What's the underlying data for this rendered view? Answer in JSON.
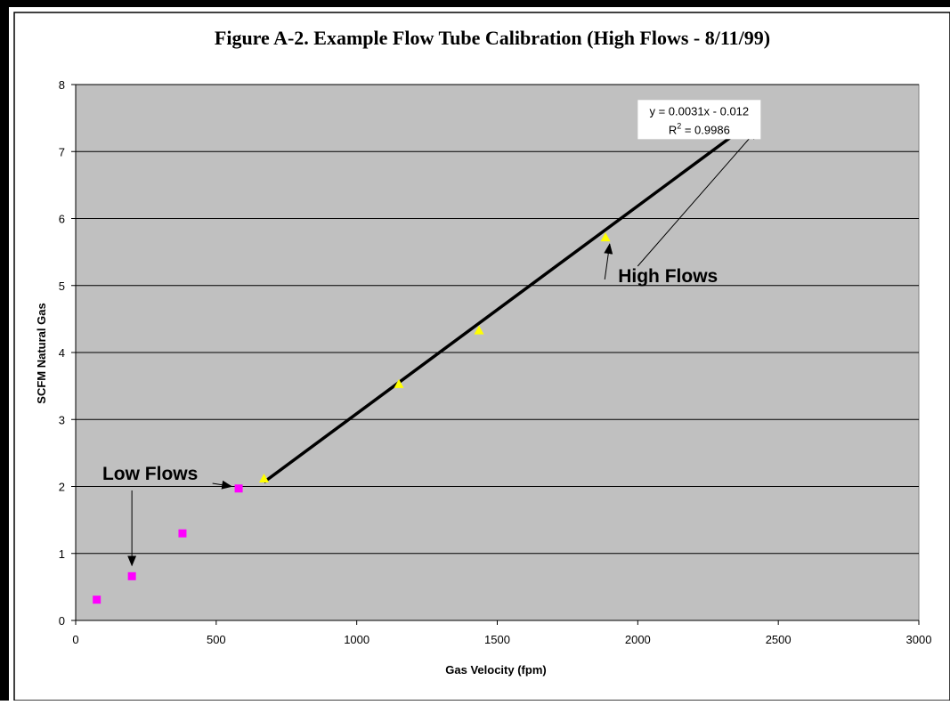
{
  "chart_data": {
    "type": "scatter",
    "title": "Figure A-2.  Example Flow Tube Calibration (High Flows - 8/11/99)",
    "xlabel": "Gas Velocity (fpm)",
    "ylabel": "SCFM Natural Gas",
    "xlim": [
      0,
      3000
    ],
    "ylim": [
      0,
      8
    ],
    "x_ticks": [
      0,
      500,
      1000,
      1500,
      2000,
      2500,
      3000
    ],
    "y_ticks": [
      0,
      1,
      2,
      3,
      4,
      5,
      6,
      7,
      8
    ],
    "grid": "horizontal",
    "plot_background": "#c0c0c0",
    "series": [
      {
        "marker": "square",
        "color": "#ff00ff",
        "points": [
          [
            75,
            0.31
          ],
          [
            200,
            0.66
          ],
          [
            380,
            1.3
          ],
          [
            580,
            1.97
          ]
        ]
      },
      {
        "marker": "triangle",
        "color": "#ffff00",
        "points": [
          [
            670,
            2.12
          ],
          [
            1150,
            3.53
          ],
          [
            1435,
            4.33
          ],
          [
            1885,
            5.72
          ],
          [
            2420,
            7.58
          ]
        ]
      }
    ],
    "trendline": {
      "slope": 0.0031,
      "intercept": -0.012,
      "x_range": [
        670,
        2420
      ],
      "color": "#000000",
      "equation": "y = 0.0031x - 0.012",
      "r2_label": "R",
      "r2_superscript": "2",
      "r2_value": " = 0.9986"
    },
    "annotations": {
      "high": {
        "text": "High Flows",
        "anchor": [
          1930,
          5.05
        ],
        "arrow_targets": [
          [
            1900,
            5.62
          ],
          [
            2425,
            7.33
          ]
        ]
      },
      "low": {
        "text": "Low Flows",
        "anchor": [
          265,
          2.1
        ],
        "arrow_targets": [
          [
            555,
            2.0
          ],
          [
            200,
            0.82
          ]
        ]
      }
    }
  }
}
